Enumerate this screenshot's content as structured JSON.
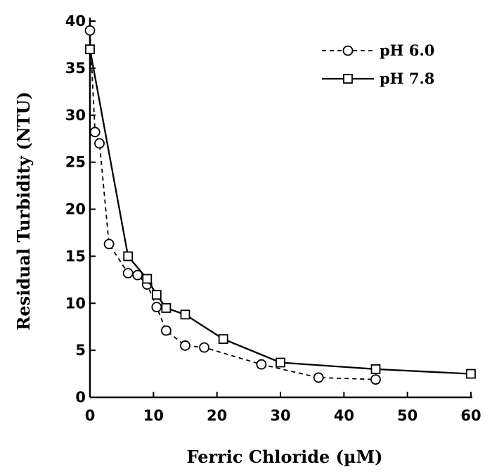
{
  "chart_data": {
    "type": "line",
    "xlabel": "Ferric Chloride (µM)",
    "ylabel": "Residual Turbidity (NTU)",
    "xlim": [
      0,
      60
    ],
    "ylim": [
      0,
      40
    ],
    "xticks": [
      "0",
      "10",
      "20",
      "30",
      "40",
      "50",
      "60"
    ],
    "yticks": [
      "0",
      "5",
      "10",
      "15",
      "20",
      "25",
      "30",
      "35",
      "40"
    ],
    "grid": false,
    "legend_position": "top-right",
    "series": [
      {
        "name": "pH 6.0",
        "line_style": "dashed",
        "marker": "circle",
        "x": [
          0,
          0.8,
          1.5,
          3,
          6,
          7.5,
          9,
          10.5,
          12,
          15,
          18,
          27,
          36,
          45
        ],
        "y": [
          39,
          28.2,
          27,
          16.3,
          13.2,
          13,
          12,
          9.6,
          7.1,
          5.5,
          5.3,
          3.5,
          2.1,
          1.9
        ]
      },
      {
        "name": "pH 7.8",
        "line_style": "solid",
        "marker": "square",
        "x": [
          0,
          6,
          9,
          10.5,
          12,
          15,
          21,
          30,
          45,
          60
        ],
        "y": [
          37,
          15,
          12.6,
          10.9,
          9.5,
          8.8,
          6.2,
          3.7,
          3,
          2.5
        ]
      }
    ]
  },
  "colors": {
    "ink": "#000000",
    "marker_fill": "#ffffff"
  }
}
